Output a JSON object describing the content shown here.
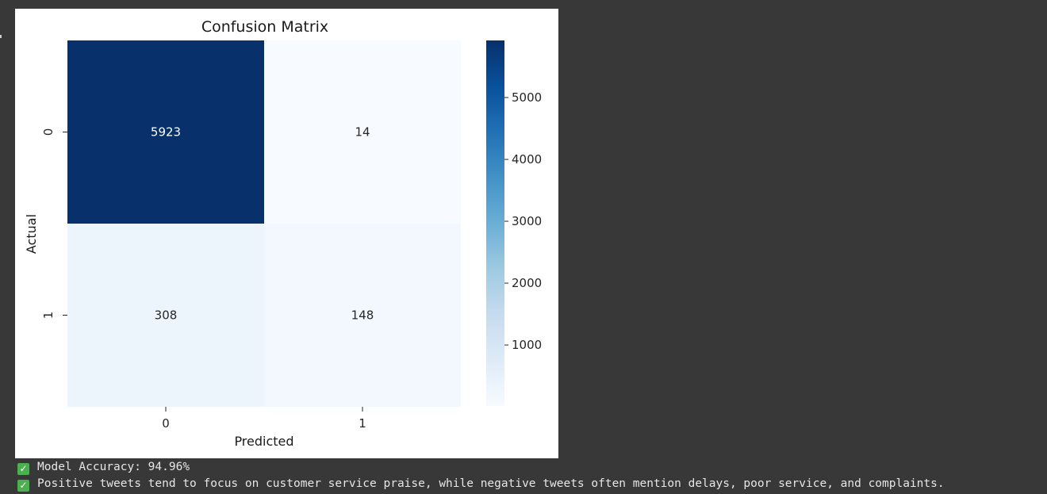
{
  "output_lines": [
    {
      "icon": "check-mark-icon",
      "text": "Model Accuracy: 94.96%"
    },
    {
      "icon": "check-mark-icon",
      "text": "Positive tweets tend to focus on customer service praise, while negative tweets often mention delays, poor service, and complaints."
    }
  ],
  "check_glyph": "✓",
  "colors": {
    "background": "#383838",
    "cmap_high": "#08306b",
    "cmap_low": "#f7fbff"
  },
  "chart_data": {
    "type": "heatmap",
    "title": "Confusion Matrix",
    "xlabel": "Predicted",
    "ylabel": "Actual",
    "x_categories": [
      "0",
      "1"
    ],
    "y_categories": [
      "0",
      "1"
    ],
    "values": [
      [
        5923,
        14
      ],
      [
        308,
        148
      ]
    ],
    "colorbar": {
      "ticks": [
        1000,
        2000,
        3000,
        4000,
        5000
      ],
      "min": 14,
      "max": 5923,
      "colormap": "Blues"
    },
    "annotations": true,
    "grid": false
  }
}
